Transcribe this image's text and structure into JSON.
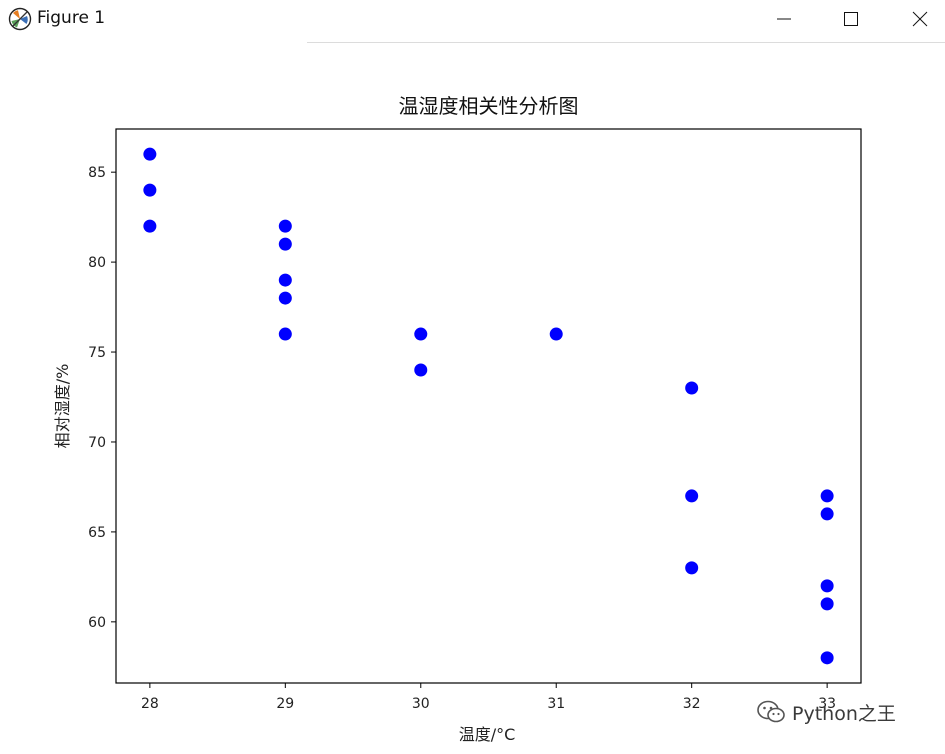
{
  "window": {
    "title": "Figure 1",
    "app_icon": "matplotlib-figure-icon",
    "controls": [
      "minimize-icon",
      "maximize-icon",
      "close-icon"
    ]
  },
  "chart_data": {
    "type": "scatter",
    "title": "温湿度相关性分析图",
    "xlabel": "温度/°C",
    "ylabel": "相对湿度/%",
    "xlim": [
      27.75,
      33.25
    ],
    "ylim": [
      56.6,
      87.4
    ],
    "xticks": [
      28,
      29,
      30,
      31,
      32,
      33
    ],
    "xtick_labels": [
      "28",
      "29",
      "30",
      "31",
      "32",
      "33"
    ],
    "yticks": [
      60,
      65,
      70,
      75,
      80,
      85
    ],
    "ytick_labels": [
      "60",
      "65",
      "70",
      "75",
      "80",
      "85"
    ],
    "grid": false,
    "legend": "none",
    "marker_color": "#0000ff",
    "x": [
      28,
      28,
      28,
      29,
      29,
      29,
      29,
      29,
      30,
      30,
      31,
      32,
      32,
      32,
      33,
      33,
      33,
      33,
      33
    ],
    "y": [
      86,
      84,
      82,
      82,
      81,
      79,
      78,
      76,
      76,
      74,
      76,
      73,
      67,
      63,
      67,
      66,
      62,
      61,
      58
    ]
  },
  "watermark": {
    "text": "Python之王",
    "icon": "wechat-icon"
  }
}
